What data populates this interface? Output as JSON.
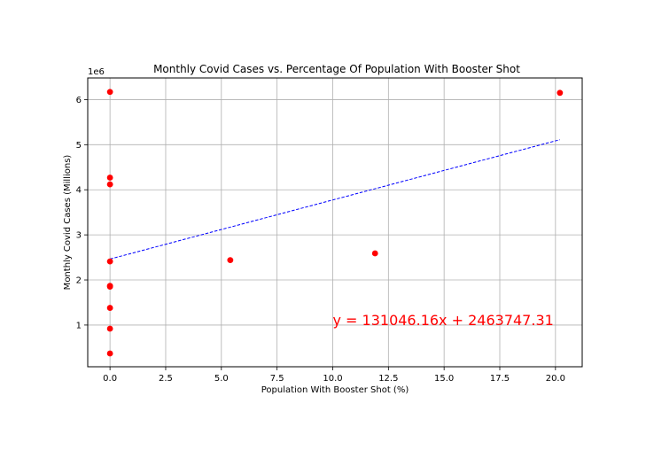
{
  "chart_data": {
    "type": "scatter",
    "title": "Monthly Covid Cases vs. Percentage Of Population With Booster Shot",
    "xlabel": "Population With Booster Shot (%)",
    "ylabel": "Monthly Covid Cases (Millions)",
    "y_offset_label": "1e6",
    "xlim": [
      -1.0,
      21.2
    ],
    "ylim": [
      75000,
      6480000
    ],
    "xticks": [
      0.0,
      2.5,
      5.0,
      7.5,
      10.0,
      12.5,
      15.0,
      17.5,
      20.0
    ],
    "xtick_labels": [
      "0.0",
      "2.5",
      "5.0",
      "7.5",
      "10.0",
      "12.5",
      "15.0",
      "17.5",
      "20.0"
    ],
    "yticks": [
      1000000,
      2000000,
      3000000,
      4000000,
      5000000,
      6000000
    ],
    "ytick_labels": [
      "1",
      "2",
      "3",
      "4",
      "5",
      "6"
    ],
    "grid": true,
    "points": [
      {
        "x": 0.0,
        "y": 6170000
      },
      {
        "x": 0.0,
        "y": 4270000
      },
      {
        "x": 0.0,
        "y": 4120000
      },
      {
        "x": 0.0,
        "y": 2410000
      },
      {
        "x": 0.0,
        "y": 1870000
      },
      {
        "x": 0.0,
        "y": 1850000
      },
      {
        "x": 0.0,
        "y": 1380000
      },
      {
        "x": 0.0,
        "y": 920000
      },
      {
        "x": 0.0,
        "y": 370000
      },
      {
        "x": 5.4,
        "y": 2440000
      },
      {
        "x": 11.9,
        "y": 2590000
      },
      {
        "x": 20.2,
        "y": 6150000
      }
    ],
    "regression": {
      "slope": 131046.16,
      "intercept": 2463747.31,
      "x_range": [
        0.0,
        20.2
      ],
      "equation_text": "y = 131046.16x + 2463747.31",
      "equation_anchor": {
        "x": 10.0,
        "y": 1000000
      }
    },
    "colors": {
      "points": "#ff0000",
      "regression_line": "#0000ff",
      "equation": "#ff0000",
      "grid": "#b0b0b0"
    }
  }
}
